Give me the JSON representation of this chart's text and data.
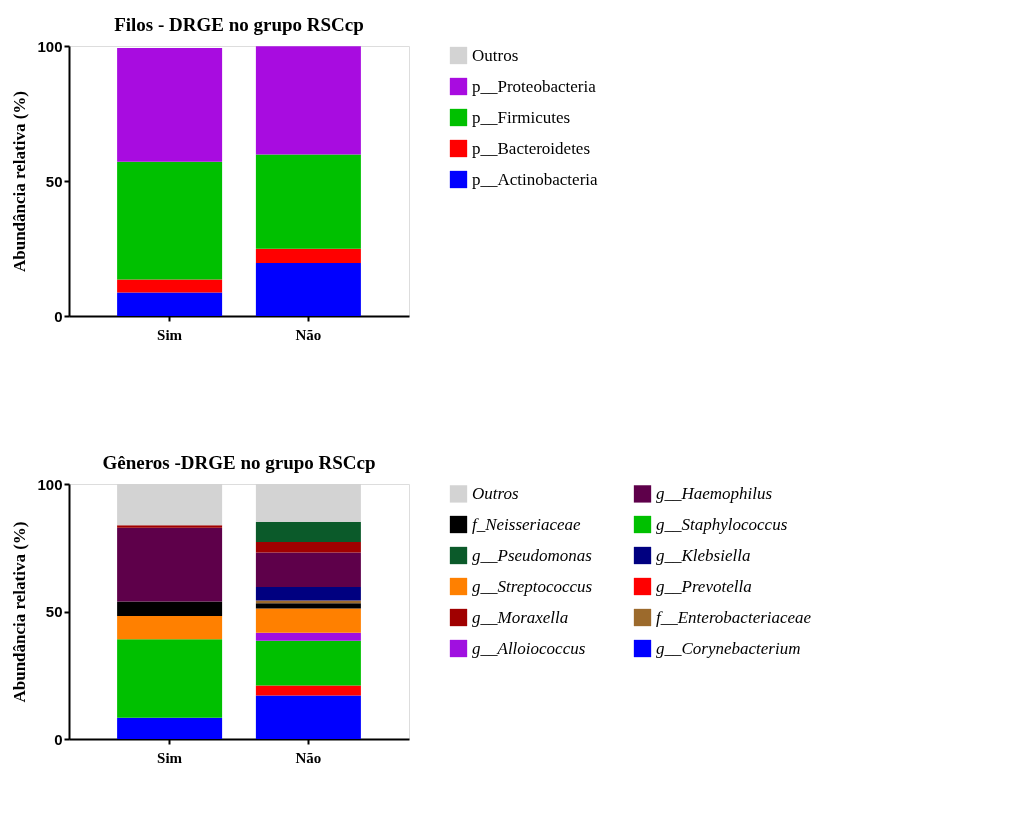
{
  "chart_data": [
    {
      "type": "bar",
      "stacked": true,
      "title": "Filos - DRGE no grupo RSCcp",
      "ylabel": "Abundância relativa (%)",
      "categories": [
        "Sim",
        "Não"
      ],
      "ylim": [
        0,
        100
      ],
      "yticks": [
        0,
        50,
        100
      ],
      "grid": false,
      "legend": "right",
      "series": [
        {
          "name": "p__Actinobacteria",
          "color": "#0000ff",
          "values": [
            8.7,
            19.6
          ]
        },
        {
          "name": "p__Bacteroidetes",
          "color": "#ff0000",
          "values": [
            4.8,
            5.3
          ]
        },
        {
          "name": "p__Firmicutes",
          "color": "#00c000",
          "values": [
            43.6,
            34.9
          ]
        },
        {
          "name": "p__Proteobacteria",
          "color": "#a80ce0",
          "values": [
            42.2,
            40.1
          ]
        },
        {
          "name": "Outros",
          "color": "#d3d3d3",
          "values": [
            null,
            null
          ]
        }
      ]
    },
    {
      "type": "bar",
      "stacked": true,
      "title": "Gêneros -DRGE no grupo RSCcp",
      "ylabel": "Abundância relativa (%)",
      "categories": [
        "Sim",
        "Não"
      ],
      "ylim": [
        0,
        100
      ],
      "yticks": [
        0,
        50,
        100
      ],
      "grid": false,
      "legend": "right",
      "series": [
        {
          "name": "g__Corynebacterium",
          "color": "#0000ff",
          "values": [
            8.3,
            17.1
          ]
        },
        {
          "name": "g__Prevotella",
          "color": "#ff0000",
          "values": [
            null,
            3.9
          ]
        },
        {
          "name": "g__Staphylococcus",
          "color": "#00c000",
          "values": [
            30.8,
            17.5
          ]
        },
        {
          "name": "g__Alloiococcus",
          "color": "#a010e0",
          "values": [
            null,
            3.2
          ]
        },
        {
          "name": "g__Streptococcus",
          "color": "#ff8000",
          "values": [
            9.1,
            9.5
          ]
        },
        {
          "name": "f_Neisseriaceae",
          "color": "#000000",
          "values": [
            5.7,
            2.0
          ]
        },
        {
          "name": "f__Enterobacteriaceae",
          "color": "#9c6a2c",
          "values": [
            null,
            1.1
          ]
        },
        {
          "name": "g__Klebsiella",
          "color": "#000080",
          "values": [
            null,
            5.3
          ]
        },
        {
          "name": "g__Haemophilus",
          "color": "#5e004a",
          "values": [
            28.9,
            13.5
          ]
        },
        {
          "name": "g__Moraxella",
          "color": "#a00000",
          "values": [
            1.0,
            4.2
          ]
        },
        {
          "name": "g__Pseudomonas",
          "color": "#0b5a2a",
          "values": [
            null,
            7.8
          ]
        },
        {
          "name": "Outros",
          "color": "#d3d3d3",
          "values": [
            16.2,
            14.9
          ]
        }
      ]
    }
  ]
}
